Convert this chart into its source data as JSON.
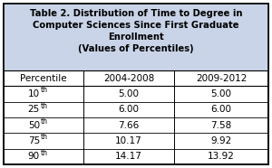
{
  "title_lines": [
    "Table 2. Distribution of Time to Degree in",
    "Computer Sciences Since First Graduate",
    "Enrollment",
    "(Values of Percentiles)"
  ],
  "header_bg": "#c9d4e8",
  "table_bg": "#ffffff",
  "border_color": "#000000",
  "col_headers": [
    "Percentile",
    "2004-2008",
    "2009-2012"
  ],
  "row_labels": [
    "10",
    "25",
    "50",
    "75",
    "90"
  ],
  "row_superscripts": [
    "th",
    "th",
    "th",
    "th",
    "th"
  ],
  "col1_values": [
    "5.00",
    "6.00",
    "7.66",
    "10.17",
    "14.17"
  ],
  "col2_values": [
    "5.00",
    "6.00",
    "7.58",
    "9.92",
    "13.92"
  ],
  "title_fontsize": 7.2,
  "header_fontsize": 7.5,
  "data_fontsize": 7.5,
  "fig_width": 3.0,
  "fig_height": 1.86,
  "dpi": 100
}
